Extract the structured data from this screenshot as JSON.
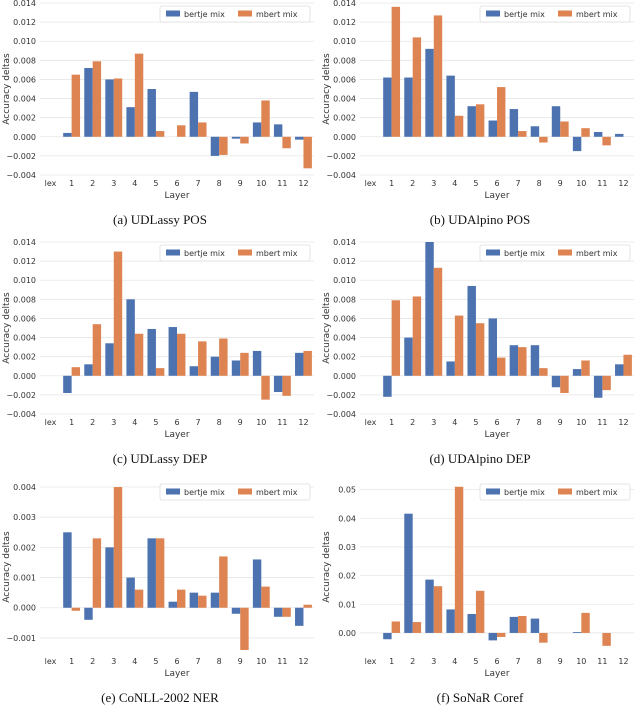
{
  "legend": [
    {
      "name": "bertje mix",
      "color": "#4c72b0"
    },
    {
      "name": "mbert mix",
      "color": "#dd8452"
    }
  ],
  "chart_data": [
    {
      "type": "bar",
      "caption": "(a) UDLassy POS",
      "xlabel": "Layer",
      "ylabel": "Accuracy deltas",
      "categories": [
        "lex",
        "1",
        "2",
        "3",
        "4",
        "5",
        "6",
        "7",
        "8",
        "9",
        "10",
        "11",
        "12"
      ],
      "ylim": [
        -0.004,
        0.014
      ],
      "yticks": [
        -0.004,
        -0.002,
        0,
        0.002,
        0.004,
        0.006,
        0.008,
        0.01,
        0.012,
        0.014
      ],
      "ytick_labels": [
        "−0.004",
        "−0.002",
        "0.000",
        "0.002",
        "0.004",
        "0.006",
        "0.008",
        "0.010",
        "0.012",
        "0.014"
      ],
      "series": [
        {
          "name": "bertje mix",
          "values": [
            0,
            0.0004,
            0.0072,
            0.006,
            0.0031,
            0.005,
            0.0,
            0.0047,
            -0.002,
            -0.0002,
            0.0015,
            0.0013,
            -0.0003
          ]
        },
        {
          "name": "mbert mix",
          "values": [
            0,
            0.0065,
            0.0079,
            0.0061,
            0.0087,
            0.0006,
            0.0012,
            0.0015,
            -0.0019,
            -0.0007,
            0.0038,
            -0.0012,
            -0.0033
          ]
        }
      ]
    },
    {
      "type": "bar",
      "caption": "(b) UDAlpino POS",
      "xlabel": "Layer",
      "ylabel": "Accuracy deltas",
      "categories": [
        "lex",
        "1",
        "2",
        "3",
        "4",
        "5",
        "6",
        "7",
        "8",
        "9",
        "10",
        "11",
        "12"
      ],
      "ylim": [
        -0.004,
        0.014
      ],
      "yticks": [
        -0.004,
        -0.002,
        0,
        0.002,
        0.004,
        0.006,
        0.008,
        0.01,
        0.012,
        0.014
      ],
      "ytick_labels": [
        "−0.004",
        "−0.002",
        "0.000",
        "0.002",
        "0.004",
        "0.006",
        "0.008",
        "0.010",
        "0.012",
        "0.014"
      ],
      "series": [
        {
          "name": "bertje mix",
          "values": [
            0,
            0.0062,
            0.0062,
            0.0092,
            0.0064,
            0.0032,
            0.0017,
            0.0029,
            0.0011,
            0.0032,
            -0.0015,
            0.0005,
            0.0003
          ]
        },
        {
          "name": "mbert mix",
          "values": [
            0,
            0.0136,
            0.0104,
            0.0127,
            0.0022,
            0.0034,
            0.0052,
            0.0006,
            -0.0006,
            0.0016,
            0.0009,
            -0.0009,
            0.0
          ]
        }
      ]
    },
    {
      "type": "bar",
      "caption": "(c) UDLassy DEP",
      "xlabel": "Layer",
      "ylabel": "Accuracy deltas",
      "categories": [
        "lex",
        "1",
        "2",
        "3",
        "4",
        "5",
        "6",
        "7",
        "8",
        "9",
        "10",
        "11",
        "12"
      ],
      "ylim": [
        -0.004,
        0.014
      ],
      "yticks": [
        -0.004,
        -0.002,
        0,
        0.002,
        0.004,
        0.006,
        0.008,
        0.01,
        0.012,
        0.014
      ],
      "ytick_labels": [
        "−0.004",
        "−0.002",
        "0.000",
        "0.002",
        "0.004",
        "0.006",
        "0.008",
        "0.010",
        "0.012",
        "0.014"
      ],
      "series": [
        {
          "name": "bertje mix",
          "values": [
            0,
            -0.0018,
            0.0012,
            0.0034,
            0.008,
            0.0049,
            0.0051,
            0.001,
            0.002,
            0.0016,
            0.0026,
            -0.0017,
            0.0024
          ]
        },
        {
          "name": "mbert mix",
          "values": [
            0,
            0.0009,
            0.0054,
            0.013,
            0.0044,
            0.0008,
            0.0044,
            0.0036,
            0.0039,
            0.0024,
            -0.0025,
            -0.0021,
            0.0026
          ]
        }
      ]
    },
    {
      "type": "bar",
      "caption": "(d) UDAlpino DEP",
      "xlabel": "Layer",
      "ylabel": "Accuracy deltas",
      "categories": [
        "lex",
        "1",
        "2",
        "3",
        "4",
        "5",
        "6",
        "7",
        "8",
        "9",
        "10",
        "11",
        "12"
      ],
      "ylim": [
        -0.004,
        0.014
      ],
      "yticks": [
        -0.004,
        -0.002,
        0,
        0.002,
        0.004,
        0.006,
        0.008,
        0.01,
        0.012,
        0.014
      ],
      "ytick_labels": [
        "−0.004",
        "−0.002",
        "0.000",
        "0.002",
        "0.004",
        "0.006",
        "0.008",
        "0.010",
        "0.012",
        "0.014"
      ],
      "series": [
        {
          "name": "bertje mix",
          "values": [
            0,
            -0.0022,
            0.004,
            0.014,
            0.0015,
            0.0094,
            0.006,
            0.0032,
            0.0032,
            -0.0012,
            0.0007,
            -0.0023,
            0.0012
          ]
        },
        {
          "name": "mbert mix",
          "values": [
            0,
            0.0079,
            0.0083,
            0.0113,
            0.0063,
            0.0055,
            0.0019,
            0.003,
            0.0008,
            -0.0018,
            0.0016,
            -0.0015,
            0.0022
          ]
        }
      ]
    },
    {
      "type": "bar",
      "caption": "(e) CoNLL-2002 NER",
      "xlabel": "Layer",
      "ylabel": "Accuracy deltas",
      "categories": [
        "lex",
        "1",
        "2",
        "3",
        "4",
        "5",
        "6",
        "7",
        "8",
        "9",
        "10",
        "11",
        "12"
      ],
      "ylim": [
        -0.0015,
        0.0042
      ],
      "yticks": [
        -0.001,
        0,
        0.001,
        0.002,
        0.003,
        0.004
      ],
      "ytick_labels": [
        "−0.001",
        "0.000",
        "0.001",
        "0.002",
        "0.003",
        "0.004"
      ],
      "series": [
        {
          "name": "bertje mix",
          "values": [
            0,
            0.0025,
            -0.0004,
            0.002,
            0.001,
            0.0023,
            0.0002,
            0.0005,
            0.0005,
            -0.0002,
            0.0016,
            -0.0003,
            -0.0006
          ]
        },
        {
          "name": "mbert mix",
          "values": [
            0,
            -0.0001,
            0.0023,
            0.004,
            0.0006,
            0.0023,
            0.0006,
            0.0004,
            0.0017,
            -0.0014,
            0.0007,
            -0.0003,
            0.0001
          ]
        }
      ]
    },
    {
      "type": "bar",
      "caption": "(f) SoNaR Coref",
      "xlabel": "Layer",
      "ylabel": "Accuracy deltas",
      "categories": [
        "lex",
        "1",
        "2",
        "3",
        "4",
        "5",
        "6",
        "7",
        "8",
        "9",
        "10",
        "11",
        "12"
      ],
      "ylim": [
        -0.007,
        0.053
      ],
      "yticks": [
        0,
        0.01,
        0.02,
        0.03,
        0.04,
        0.05
      ],
      "ytick_labels": [
        "0.00",
        "0.01",
        "0.02",
        "0.03",
        "0.04",
        "0.05"
      ],
      "series": [
        {
          "name": "bertje mix",
          "values": [
            0,
            -0.0022,
            0.0416,
            0.0186,
            0.0082,
            0.0066,
            -0.0026,
            0.0056,
            0.005,
            0.0,
            0.0003,
            0.0,
            0.0
          ]
        },
        {
          "name": "mbert mix",
          "values": [
            0,
            0.004,
            0.0038,
            0.0163,
            0.051,
            0.0147,
            -0.0014,
            0.0059,
            -0.0034,
            0.0,
            0.007,
            -0.0045,
            0.0
          ]
        }
      ]
    }
  ]
}
